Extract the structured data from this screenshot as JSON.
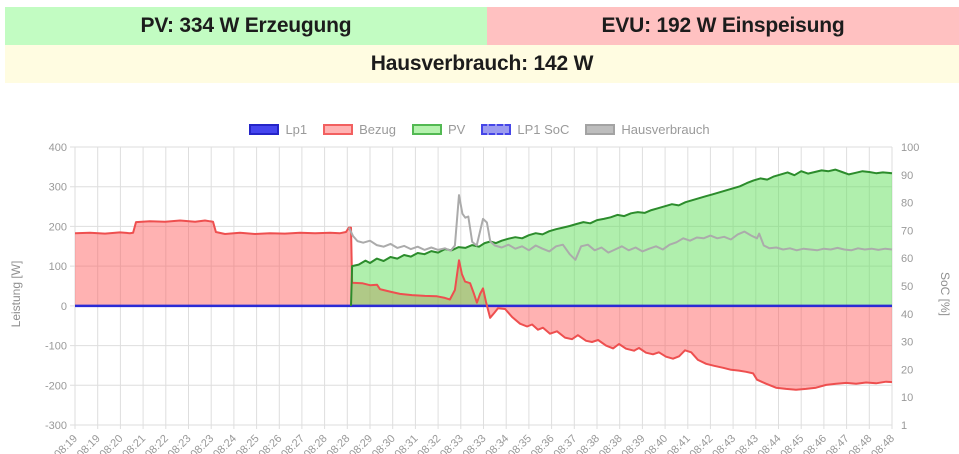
{
  "header": {
    "pv": {
      "label": "PV: 334 W Erzeugung",
      "bg": "#c2fcc2"
    },
    "evu": {
      "label": "EVU: 192 W Einspeisung",
      "bg": "#ffc1c1"
    },
    "haus": {
      "label": "Hausverbrauch: 142 W",
      "bg": "#fffce1"
    }
  },
  "legend": {
    "items": [
      {
        "name": "Lp1",
        "fill": "#4545ef",
        "border": "#2525c8",
        "dashed": false
      },
      {
        "name": "Bezug",
        "fill": "#ffb3b3",
        "border": "#f26060",
        "dashed": false
      },
      {
        "name": "PV",
        "fill": "#b5f2ae",
        "border": "#53b953",
        "dashed": false
      },
      {
        "name": "LP1 SoC",
        "fill": "#9b9bf0",
        "border": "#4646e8",
        "dashed": true
      },
      {
        "name": "Hausverbrauch",
        "fill": "#bdbdbd",
        "border": "#a3a3a3",
        "dashed": false
      }
    ]
  },
  "chart_data": {
    "type": "area",
    "title": "",
    "x_unit": "tick-index (time)",
    "x_tick_labels": [
      "08:19",
      "08:19",
      "08:20",
      "08:21",
      "08:22",
      "08:23",
      "08:23",
      "08:24",
      "08:25",
      "08:26",
      "08:27",
      "08:28",
      "08:28",
      "08:29",
      "08:30",
      "08:31",
      "08:32",
      "08:33",
      "08:33",
      "08:34",
      "08:35",
      "08:36",
      "08:37",
      "08:38",
      "08:38",
      "08:39",
      "08:40",
      "08:41",
      "08:42",
      "08:43",
      "08:43",
      "08:44",
      "08:45",
      "08:46",
      "08:47",
      "08:48",
      "08:48"
    ],
    "grid": true,
    "legend_position": "top-center",
    "y_left": {
      "label": "Leistung [W]",
      "min": -300,
      "max": 400,
      "ticks": [
        400,
        300,
        200,
        100,
        0,
        -100,
        -200,
        -300
      ]
    },
    "y_right": {
      "label": "SoC [%]",
      "ticks": [
        100,
        90,
        80,
        70,
        60,
        50,
        40,
        30,
        20,
        10,
        1
      ]
    },
    "colors": {
      "grid": "#dedede",
      "tick_text": "#999999"
    },
    "series": [
      {
        "name": "Lp1",
        "axis": "left",
        "stroke": "#2b2bd5",
        "width": 2.5,
        "fill": "none",
        "points": [
          [
            0,
            0
          ],
          [
            36,
            0
          ]
        ]
      },
      {
        "name": "Bezug",
        "axis": "left",
        "stroke": "#ee4f4f",
        "width": 2,
        "fill": "rgba(255,85,85,0.45)",
        "points": [
          [
            0,
            183
          ],
          [
            0.66,
            184
          ],
          [
            1.32,
            182
          ],
          [
            1.98,
            185
          ],
          [
            2.42,
            183
          ],
          [
            2.56,
            184
          ],
          [
            2.69,
            211
          ],
          [
            3.3,
            213
          ],
          [
            3.97,
            212
          ],
          [
            4.63,
            215
          ],
          [
            5.29,
            212
          ],
          [
            5.73,
            215
          ],
          [
            5.95,
            213
          ],
          [
            6.08,
            212
          ],
          [
            6.21,
            186
          ],
          [
            6.61,
            181
          ],
          [
            7.27,
            184
          ],
          [
            7.93,
            181
          ],
          [
            8.59,
            183
          ],
          [
            9.25,
            182
          ],
          [
            9.92,
            184
          ],
          [
            10.58,
            183
          ],
          [
            11.24,
            184
          ],
          [
            11.68,
            183
          ],
          [
            11.94,
            186
          ],
          [
            12.07,
            197
          ],
          [
            12.16,
            197
          ],
          [
            12.21,
            58
          ],
          [
            12.65,
            57
          ],
          [
            13.0,
            52
          ],
          [
            13.31,
            53
          ],
          [
            13.44,
            42
          ],
          [
            13.88,
            36
          ],
          [
            14.32,
            30
          ],
          [
            14.85,
            27
          ],
          [
            15.42,
            25
          ],
          [
            15.95,
            24
          ],
          [
            16.3,
            20
          ],
          [
            16.52,
            16
          ],
          [
            16.74,
            40
          ],
          [
            16.92,
            115
          ],
          [
            17.05,
            80
          ],
          [
            17.19,
            61
          ],
          [
            17.41,
            57
          ],
          [
            17.58,
            30
          ],
          [
            17.71,
            8
          ],
          [
            17.85,
            30
          ],
          [
            17.98,
            44
          ],
          [
            18.11,
            10
          ],
          [
            18.29,
            -30
          ],
          [
            18.47,
            -18
          ],
          [
            18.64,
            -6
          ],
          [
            18.95,
            -8
          ],
          [
            19.26,
            -28
          ],
          [
            19.61,
            -45
          ],
          [
            19.92,
            -52
          ],
          [
            20.14,
            -47
          ],
          [
            20.4,
            -60
          ],
          [
            20.62,
            -55
          ],
          [
            20.93,
            -70
          ],
          [
            21.24,
            -64
          ],
          [
            21.59,
            -80
          ],
          [
            21.9,
            -84
          ],
          [
            22.16,
            -74
          ],
          [
            22.52,
            -88
          ],
          [
            22.78,
            -91
          ],
          [
            23.05,
            -86
          ],
          [
            23.4,
            -100
          ],
          [
            23.71,
            -107
          ],
          [
            23.97,
            -96
          ],
          [
            24.28,
            -108
          ],
          [
            24.63,
            -113
          ],
          [
            24.85,
            -106
          ],
          [
            25.16,
            -118
          ],
          [
            25.47,
            -122
          ],
          [
            25.73,
            -117
          ],
          [
            26.04,
            -128
          ],
          [
            26.35,
            -133
          ],
          [
            26.62,
            -127
          ],
          [
            26.88,
            -112
          ],
          [
            27.15,
            -117
          ],
          [
            27.45,
            -136
          ],
          [
            27.81,
            -146
          ],
          [
            28.16,
            -151
          ],
          [
            28.56,
            -156
          ],
          [
            28.91,
            -161
          ],
          [
            29.26,
            -163
          ],
          [
            29.57,
            -166
          ],
          [
            29.88,
            -170
          ],
          [
            30.05,
            -186
          ],
          [
            30.45,
            -196
          ],
          [
            30.89,
            -206
          ],
          [
            31.33,
            -209
          ],
          [
            31.77,
            -211
          ],
          [
            32.21,
            -209
          ],
          [
            32.65,
            -206
          ],
          [
            33.1,
            -199
          ],
          [
            33.54,
            -196
          ],
          [
            33.98,
            -194
          ],
          [
            34.42,
            -196
          ],
          [
            34.86,
            -193
          ],
          [
            35.3,
            -195
          ],
          [
            35.74,
            -191
          ],
          [
            36,
            -192
          ]
        ]
      },
      {
        "name": "PV",
        "axis": "left",
        "stroke": "#2c8c2c",
        "width": 2,
        "fill": "rgba(98,223,92,0.5)",
        "points": [
          [
            12.16,
            0
          ],
          [
            12.21,
            100
          ],
          [
            12.5,
            104
          ],
          [
            12.8,
            114
          ],
          [
            13.0,
            108
          ],
          [
            13.3,
            119
          ],
          [
            13.6,
            113
          ],
          [
            13.9,
            123
          ],
          [
            14.2,
            119
          ],
          [
            14.5,
            128
          ],
          [
            14.8,
            124
          ],
          [
            15.1,
            133
          ],
          [
            15.4,
            130
          ],
          [
            15.7,
            138
          ],
          [
            16.0,
            134
          ],
          [
            16.3,
            143
          ],
          [
            16.6,
            140
          ],
          [
            16.9,
            148
          ],
          [
            17.2,
            146
          ],
          [
            17.5,
            153
          ],
          [
            17.8,
            149
          ],
          [
            18.05,
            158
          ],
          [
            18.3,
            162
          ],
          [
            18.55,
            158
          ],
          [
            18.8,
            164
          ],
          [
            19.1,
            169
          ],
          [
            19.4,
            173
          ],
          [
            19.7,
            170
          ],
          [
            20.0,
            178
          ],
          [
            20.3,
            183
          ],
          [
            20.6,
            180
          ],
          [
            20.9,
            188
          ],
          [
            21.2,
            193
          ],
          [
            21.5,
            197
          ],
          [
            21.8,
            201
          ],
          [
            22.1,
            206
          ],
          [
            22.4,
            211
          ],
          [
            22.7,
            208
          ],
          [
            23.0,
            216
          ],
          [
            23.3,
            219
          ],
          [
            23.6,
            223
          ],
          [
            23.9,
            229
          ],
          [
            24.2,
            226
          ],
          [
            24.5,
            233
          ],
          [
            24.8,
            236
          ],
          [
            25.1,
            234
          ],
          [
            25.4,
            241
          ],
          [
            25.7,
            246
          ],
          [
            26.0,
            251
          ],
          [
            26.3,
            256
          ],
          [
            26.6,
            253
          ],
          [
            26.9,
            261
          ],
          [
            27.2,
            266
          ],
          [
            27.5,
            271
          ],
          [
            27.8,
            276
          ],
          [
            28.1,
            281
          ],
          [
            28.4,
            286
          ],
          [
            28.7,
            291
          ],
          [
            29.0,
            296
          ],
          [
            29.3,
            301
          ],
          [
            29.6,
            309
          ],
          [
            29.9,
            316
          ],
          [
            30.2,
            321
          ],
          [
            30.5,
            318
          ],
          [
            30.8,
            326
          ],
          [
            31.1,
            331
          ],
          [
            31.4,
            336
          ],
          [
            31.7,
            329
          ],
          [
            32.0,
            339
          ],
          [
            32.3,
            333
          ],
          [
            32.6,
            337
          ],
          [
            32.9,
            341
          ],
          [
            33.2,
            339
          ],
          [
            33.5,
            343
          ],
          [
            33.8,
            337
          ],
          [
            34.1,
            331
          ],
          [
            34.4,
            335
          ],
          [
            34.7,
            339
          ],
          [
            35.0,
            337
          ],
          [
            35.3,
            334
          ],
          [
            35.6,
            336
          ],
          [
            36.0,
            334
          ]
        ]
      },
      {
        "name": "LP1 SoC",
        "axis": "right",
        "stroke": "#4646e8",
        "width": 2,
        "fill": "rgba(120,120,240,0.6)",
        "dashed": true,
        "points": []
      },
      {
        "name": "Hausverbrauch",
        "axis": "left",
        "stroke": "#ababab",
        "width": 2,
        "fill": "none",
        "points": [
          [
            12.07,
            197
          ],
          [
            12.25,
            176
          ],
          [
            12.45,
            163
          ],
          [
            12.7,
            159
          ],
          [
            13.0,
            164
          ],
          [
            13.3,
            153
          ],
          [
            13.6,
            149
          ],
          [
            13.9,
            156
          ],
          [
            14.2,
            146
          ],
          [
            14.5,
            151
          ],
          [
            14.8,
            143
          ],
          [
            15.1,
            149
          ],
          [
            15.4,
            141
          ],
          [
            15.7,
            147
          ],
          [
            16.0,
            141
          ],
          [
            16.3,
            145
          ],
          [
            16.55,
            139
          ],
          [
            16.74,
            152
          ],
          [
            16.92,
            279
          ],
          [
            17.07,
            232
          ],
          [
            17.2,
            222
          ],
          [
            17.33,
            225
          ],
          [
            17.5,
            161
          ],
          [
            17.7,
            152
          ],
          [
            17.98,
            219
          ],
          [
            18.15,
            210
          ],
          [
            18.3,
            162
          ],
          [
            18.5,
            152
          ],
          [
            18.8,
            147
          ],
          [
            19.1,
            154
          ],
          [
            19.4,
            144
          ],
          [
            19.7,
            150
          ],
          [
            20.0,
            140
          ],
          [
            20.3,
            152
          ],
          [
            20.6,
            144
          ],
          [
            20.9,
            137
          ],
          [
            21.2,
            150
          ],
          [
            21.5,
            154
          ],
          [
            21.8,
            130
          ],
          [
            22.05,
            116
          ],
          [
            22.3,
            150
          ],
          [
            22.6,
            154
          ],
          [
            22.9,
            140
          ],
          [
            23.2,
            147
          ],
          [
            23.5,
            134
          ],
          [
            23.8,
            142
          ],
          [
            24.1,
            150
          ],
          [
            24.4,
            140
          ],
          [
            24.7,
            147
          ],
          [
            25.0,
            137
          ],
          [
            25.3,
            144
          ],
          [
            25.6,
            150
          ],
          [
            25.9,
            142
          ],
          [
            26.2,
            154
          ],
          [
            26.5,
            160
          ],
          [
            26.8,
            170
          ],
          [
            27.1,
            164
          ],
          [
            27.4,
            172
          ],
          [
            27.7,
            170
          ],
          [
            28.0,
            177
          ],
          [
            28.3,
            170
          ],
          [
            28.6,
            174
          ],
          [
            28.9,
            167
          ],
          [
            29.2,
            180
          ],
          [
            29.5,
            187
          ],
          [
            29.8,
            177
          ],
          [
            30.05,
            170
          ],
          [
            30.15,
            182
          ],
          [
            30.35,
            152
          ],
          [
            30.6,
            145
          ],
          [
            30.9,
            147
          ],
          [
            31.2,
            142
          ],
          [
            31.5,
            145
          ],
          [
            31.8,
            140
          ],
          [
            32.1,
            144
          ],
          [
            32.4,
            142
          ],
          [
            32.7,
            140
          ],
          [
            33.0,
            144
          ],
          [
            33.3,
            142
          ],
          [
            33.6,
            146
          ],
          [
            33.9,
            142
          ],
          [
            34.2,
            140
          ],
          [
            34.5,
            145
          ],
          [
            34.8,
            142
          ],
          [
            35.1,
            144
          ],
          [
            35.4,
            141
          ],
          [
            35.7,
            144
          ],
          [
            36.0,
            142
          ]
        ]
      }
    ]
  }
}
